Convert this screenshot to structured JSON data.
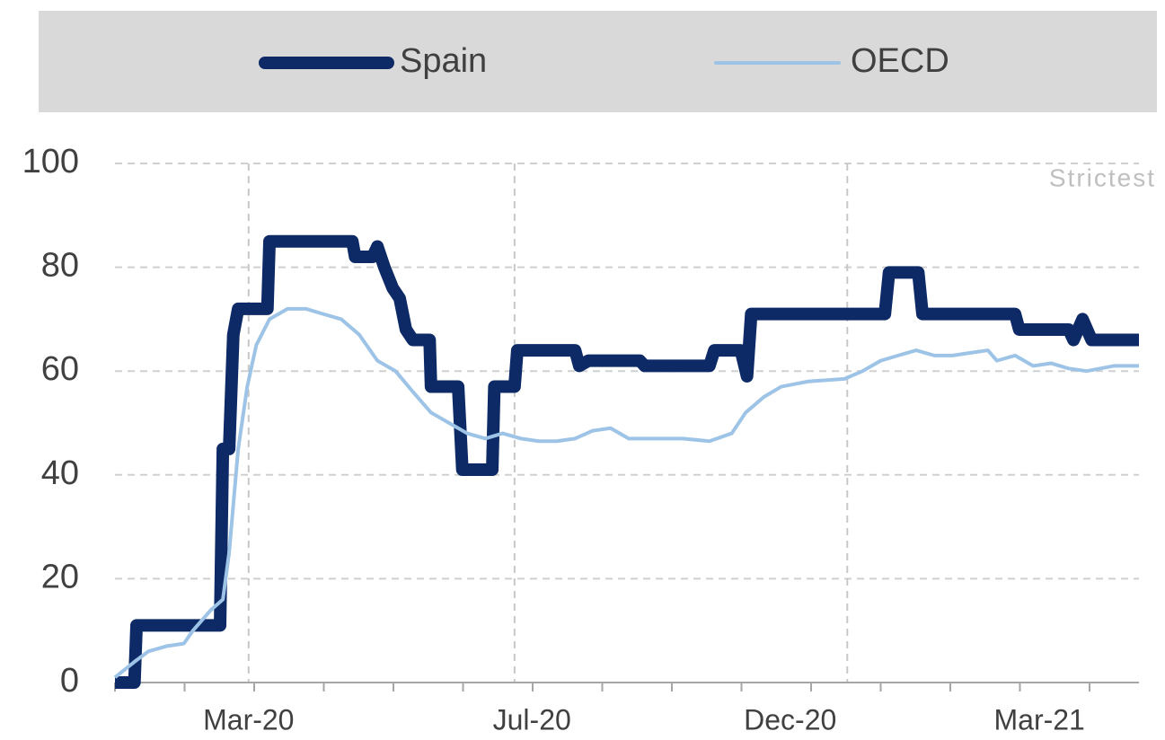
{
  "chart_data": {
    "type": "line",
    "annotation": "Strictest",
    "legend": "top",
    "grid": true,
    "ylim": [
      0,
      100
    ],
    "yticks": [
      0,
      20,
      40,
      60,
      80,
      100
    ],
    "xlim": [
      1,
      15.71
    ],
    "xticks": [
      {
        "value": 2.92,
        "label": "Mar-20"
      },
      {
        "value": 6.99,
        "label": "Jul-20"
      },
      {
        "value": 10.7,
        "label": "Dec-20"
      },
      {
        "value": 14.28,
        "label": "Mar-21"
      }
    ],
    "xminorticks": [
      1,
      2,
      3,
      4,
      5,
      6,
      7,
      8,
      9,
      10,
      11,
      12,
      13,
      14,
      15
    ],
    "xgrid": [
      2.92,
      6.74,
      11.52
    ],
    "series": [
      {
        "name": "Spain",
        "color": "#0d2a66",
        "x": [
          1.0,
          1.28,
          1.31,
          2.51,
          2.55,
          2.64,
          2.7,
          2.77,
          3.19,
          3.22,
          4.41,
          4.45,
          4.7,
          4.77,
          4.87,
          4.99,
          5.09,
          5.18,
          5.28,
          5.52,
          5.54,
          5.93,
          5.99,
          6.42,
          6.45,
          6.74,
          6.78,
          7.61,
          7.67,
          7.8,
          8.54,
          8.61,
          9.54,
          9.61,
          9.99,
          10.08,
          10.14,
          12.06,
          12.12,
          12.54,
          12.6,
          13.93,
          13.99,
          14.7,
          14.77,
          14.9,
          15.03,
          15.71
        ],
        "values": [
          0,
          0,
          11,
          11,
          45,
          45,
          67,
          72,
          72,
          85,
          85,
          82,
          82,
          84,
          80,
          76,
          74,
          68,
          66,
          66,
          57,
          57,
          41,
          41,
          57,
          57,
          64,
          64,
          61,
          62,
          62,
          61,
          61,
          64,
          64,
          59,
          71,
          71,
          79,
          79,
          71,
          71,
          68,
          68,
          66,
          70,
          66,
          66
        ]
      },
      {
        "name": "OECD",
        "color": "#9dc3e6",
        "x": [
          1.0,
          1.28,
          1.48,
          1.74,
          1.99,
          2.12,
          2.38,
          2.55,
          2.64,
          2.77,
          2.9,
          3.03,
          3.22,
          3.48,
          3.74,
          3.99,
          4.25,
          4.51,
          4.77,
          5.03,
          5.28,
          5.54,
          5.8,
          6.06,
          6.32,
          6.57,
          6.83,
          7.09,
          7.35,
          7.61,
          7.86,
          8.12,
          8.38,
          8.64,
          9.15,
          9.54,
          9.86,
          10.06,
          10.32,
          10.57,
          10.96,
          11.48,
          11.74,
          12.0,
          12.25,
          12.51,
          12.77,
          13.03,
          13.28,
          13.54,
          13.67,
          13.93,
          14.19,
          14.45,
          14.7,
          14.96,
          15.35,
          15.71
        ],
        "values": [
          1,
          4,
          6,
          7,
          7.5,
          10,
          14,
          16,
          25,
          45,
          57,
          65,
          70,
          72,
          72,
          71,
          70,
          67,
          62,
          60,
          56,
          52,
          50,
          48,
          47,
          48,
          47,
          46.5,
          46.5,
          47,
          48.5,
          49,
          47,
          47,
          47,
          46.5,
          48,
          52,
          55,
          57,
          58,
          58.5,
          60,
          62,
          63,
          64,
          63,
          63,
          63.5,
          64,
          62,
          63,
          61,
          61.5,
          60.5,
          60,
          61,
          61
        ]
      }
    ]
  }
}
